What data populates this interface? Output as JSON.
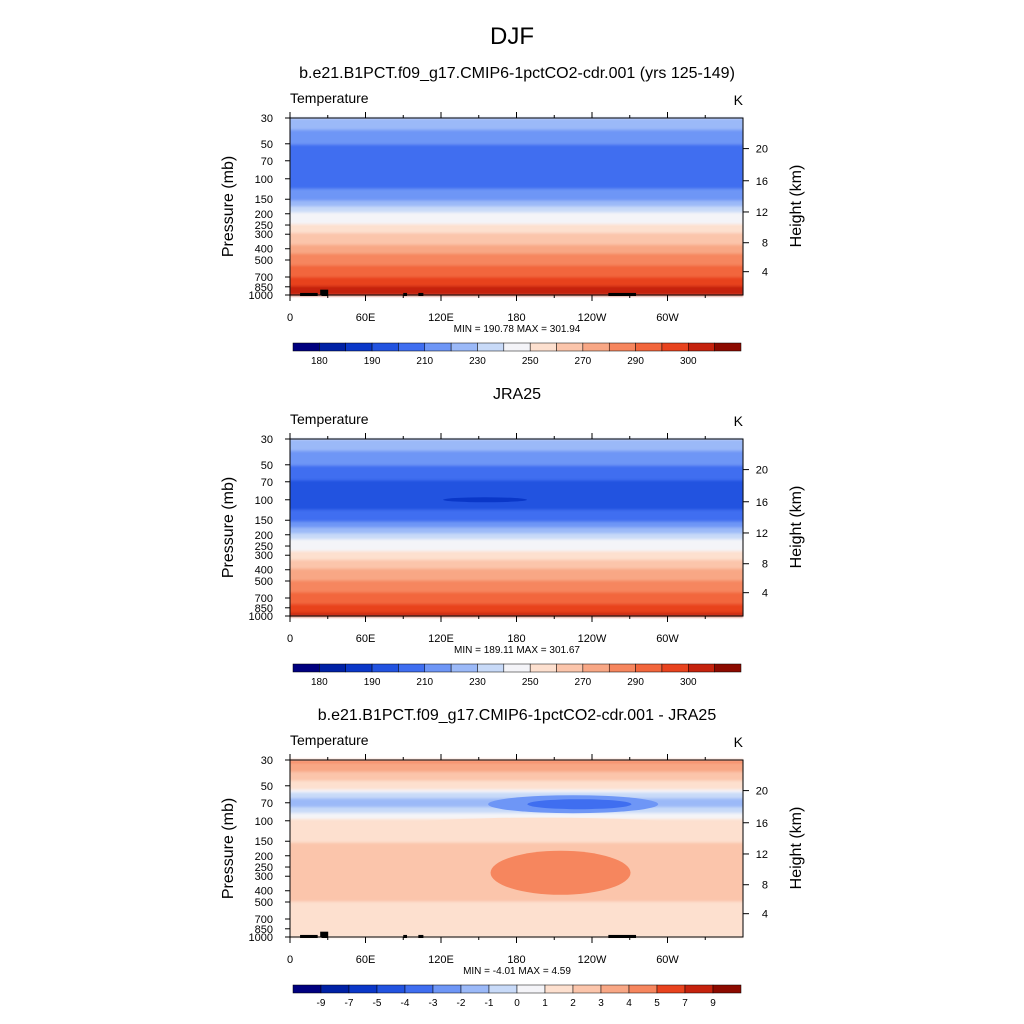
{
  "figure": {
    "season": "DJF"
  },
  "chart_data": [
    {
      "type": "heatmap",
      "title": "b.e21.B1PCT.f09_g17.CMIP6-1pctCO2-cdr.001 (yrs 125-149)",
      "left_label": "Temperature",
      "right_label": "K",
      "xlabel": "",
      "ylabel": "Pressure (mb)",
      "ylabel_right": "Height (km)",
      "x_ticks": [
        "0",
        "60E",
        "120E",
        "180",
        "120W",
        "60W"
      ],
      "y_ticks": [
        "30",
        "50",
        "70",
        "100",
        "150",
        "200",
        "250",
        "300",
        "400",
        "500",
        "700",
        "850",
        "1000"
      ],
      "height_ticks": [
        "20",
        "16",
        "12",
        "8",
        "4"
      ],
      "y_scale": "log",
      "ylim": [
        1000,
        30
      ],
      "xlim": [
        0,
        360
      ],
      "stats": "MIN = 190.78  MAX = 301.94",
      "colorbar_labels": [
        "180",
        "190",
        "210",
        "230",
        "250",
        "270",
        "290",
        "300"
      ],
      "approx_levels": [
        {
          "pressure": 30,
          "value": 215
        },
        {
          "pressure": 50,
          "value": 205
        },
        {
          "pressure": 70,
          "value": 200
        },
        {
          "pressure": 100,
          "value": 200
        },
        {
          "pressure": 150,
          "value": 210
        },
        {
          "pressure": 200,
          "value": 220
        },
        {
          "pressure": 250,
          "value": 230
        },
        {
          "pressure": 300,
          "value": 240
        },
        {
          "pressure": 400,
          "value": 255
        },
        {
          "pressure": 500,
          "value": 265
        },
        {
          "pressure": 700,
          "value": 280
        },
        {
          "pressure": 850,
          "value": 290
        },
        {
          "pressure": 1000,
          "value": 300
        }
      ]
    },
    {
      "type": "heatmap",
      "title": "JRA25",
      "left_label": "Temperature",
      "right_label": "K",
      "xlabel": "",
      "ylabel": "Pressure (mb)",
      "ylabel_right": "Height (km)",
      "x_ticks": [
        "0",
        "60E",
        "120E",
        "180",
        "120W",
        "60W"
      ],
      "y_ticks": [
        "30",
        "50",
        "70",
        "100",
        "150",
        "200",
        "250",
        "300",
        "400",
        "500",
        "700",
        "850",
        "1000"
      ],
      "height_ticks": [
        "20",
        "16",
        "12",
        "8",
        "4"
      ],
      "y_scale": "log",
      "ylim": [
        1000,
        30
      ],
      "xlim": [
        0,
        360
      ],
      "stats": "MIN = 189.11  MAX = 301.67",
      "colorbar_labels": [
        "180",
        "190",
        "210",
        "230",
        "250",
        "270",
        "290",
        "300"
      ],
      "approx_levels": [
        {
          "pressure": 30,
          "value": 215
        },
        {
          "pressure": 50,
          "value": 205
        },
        {
          "pressure": 70,
          "value": 200
        },
        {
          "pressure": 100,
          "value": 195
        },
        {
          "pressure": 150,
          "value": 205
        },
        {
          "pressure": 200,
          "value": 215
        },
        {
          "pressure": 250,
          "value": 225
        },
        {
          "pressure": 300,
          "value": 235
        },
        {
          "pressure": 400,
          "value": 250
        },
        {
          "pressure": 500,
          "value": 260
        },
        {
          "pressure": 700,
          "value": 275
        },
        {
          "pressure": 850,
          "value": 285
        },
        {
          "pressure": 1000,
          "value": 295
        }
      ]
    },
    {
      "type": "heatmap",
      "title": "b.e21.B1PCT.f09_g17.CMIP6-1pctCO2-cdr.001 - JRA25",
      "left_label": "Temperature",
      "right_label": "K",
      "xlabel": "",
      "ylabel": "Pressure (mb)",
      "ylabel_right": "Height (km)",
      "x_ticks": [
        "0",
        "60E",
        "120E",
        "180",
        "120W",
        "60W"
      ],
      "y_ticks": [
        "30",
        "50",
        "70",
        "100",
        "150",
        "200",
        "250",
        "300",
        "400",
        "500",
        "700",
        "850",
        "1000"
      ],
      "height_ticks": [
        "20",
        "16",
        "12",
        "8",
        "4"
      ],
      "y_scale": "log",
      "ylim": [
        1000,
        30
      ],
      "xlim": [
        0,
        360
      ],
      "stats": "MIN = -4.01  MAX =  4.59",
      "colorbar_labels": [
        "-9",
        "-7",
        "-5",
        "-4",
        "-3",
        "-2",
        "-1",
        "0",
        "1",
        "2",
        "3",
        "4",
        "5",
        "7",
        "9"
      ],
      "approx_levels": [
        {
          "pressure": 30,
          "value": 4.5
        },
        {
          "pressure": 50,
          "value": 1.5
        },
        {
          "pressure": 70,
          "value": -2
        },
        {
          "pressure": 100,
          "value": 1.5
        },
        {
          "pressure": 150,
          "value": 2
        },
        {
          "pressure": 200,
          "value": 2
        },
        {
          "pressure": 300,
          "value": 2.5
        },
        {
          "pressure": 500,
          "value": 2
        },
        {
          "pressure": 700,
          "value": 1.5
        },
        {
          "pressure": 850,
          "value": 1
        },
        {
          "pressure": 1000,
          "value": 2
        }
      ]
    }
  ],
  "colors": {
    "abs_scale": [
      "#00007f",
      "#0021a5",
      "#0a37c8",
      "#2253e0",
      "#3f6ef0",
      "#6e96f6",
      "#9bb9f8",
      "#c8daf8",
      "#f4f4f8",
      "#fde0cf",
      "#fbc5ab",
      "#f8a785",
      "#f6865e",
      "#f2663c",
      "#e8431e",
      "#c5220d",
      "#8c0a00"
    ],
    "diff_scale": [
      "#00007f",
      "#0021a5",
      "#0a37c8",
      "#2253e0",
      "#3f6ef0",
      "#6e96f6",
      "#9bb9f8",
      "#c8daf8",
      "#f4f4f8",
      "#fde0cf",
      "#fbc5ab",
      "#f8a785",
      "#f6865e",
      "#e8431e",
      "#c5220d",
      "#8c0a00"
    ],
    "topography": "#000000"
  }
}
